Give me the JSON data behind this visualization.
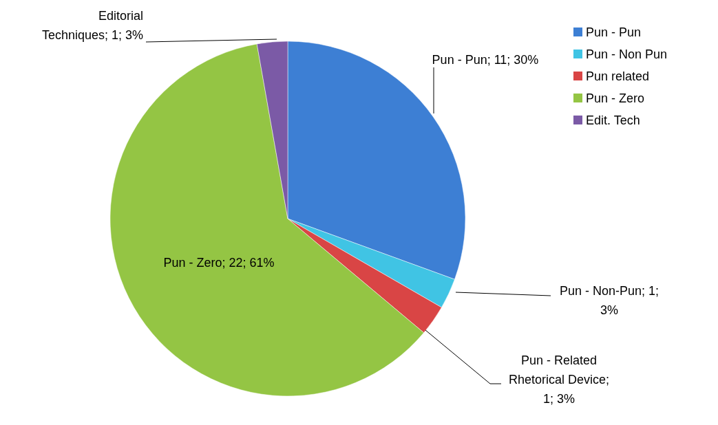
{
  "chart_data": {
    "type": "pie",
    "categories": [
      "Pun - Pun",
      "Pun - Non Pun",
      "Pun related",
      "Pun - Zero",
      "Edit. Tech"
    ],
    "values": [
      11,
      1,
      1,
      22,
      1
    ],
    "colors": [
      "#3d7fd4",
      "#40c4e4",
      "#d94545",
      "#94c544",
      "#7b5aa6"
    ],
    "value_labels": [
      "Pun - Pun; 11; 30%",
      "Pun - Non-Pun; 1;\n3%",
      "Pun - Related\nRhetorical Device;\n1; 3%",
      "Pun - Zero; 22; 61%",
      "Editorial\nTechniques; 1; 3%"
    ],
    "legend": "right"
  }
}
